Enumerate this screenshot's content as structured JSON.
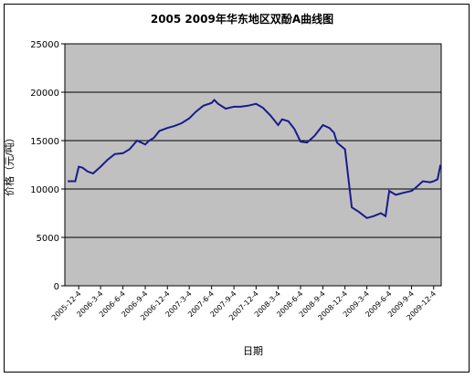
{
  "chart_data": {
    "type": "line",
    "title": "2005  2009年华东地区双酚A曲线图",
    "xlabel": "日期",
    "ylabel": "价格（元/吨）",
    "ylim": [
      0,
      25000
    ],
    "yticks": [
      0,
      5000,
      10000,
      15000,
      20000,
      25000
    ],
    "ytick_labels": [
      "0",
      "5000",
      "10000",
      "15000",
      "20000",
      "25000"
    ],
    "xtick_labels": [
      "2005-12-4",
      "2006-3-4",
      "2006-6-4",
      "2006-9-4",
      "2006-12-4",
      "2007-3-4",
      "2007-6-4",
      "2007-9-4",
      "2007-12-4",
      "2008-3-4",
      "2008-6-4",
      "2008-9-4",
      "2008-12-4",
      "2009-3-4",
      "2009-6-4",
      "2009-9-4",
      "2009-12-4"
    ],
    "grid": true,
    "plot_background": "#c0c0c0",
    "line_color": "#1a1a8c",
    "series": [
      {
        "x": [
          "2005-10-20",
          "2005-11-20",
          "2005-12-4",
          "2005-12-20",
          "2006-1-10",
          "2006-2-1",
          "2006-3-4",
          "2006-4-1",
          "2006-5-1",
          "2006-6-4",
          "2006-7-1",
          "2006-8-1",
          "2006-9-4",
          "2006-9-20",
          "2006-10-10",
          "2006-11-1",
          "2006-12-4",
          "2007-1-1",
          "2007-2-1",
          "2007-3-4",
          "2007-4-1",
          "2007-5-1",
          "2007-6-4",
          "2007-6-15",
          "2007-7-1",
          "2007-8-1",
          "2007-9-4",
          "2007-10-1",
          "2007-11-1",
          "2007-12-4",
          "2008-1-1",
          "2008-2-1",
          "2008-3-4",
          "2008-3-20",
          "2008-4-15",
          "2008-5-10",
          "2008-6-4",
          "2008-7-1",
          "2008-8-1",
          "2008-9-4",
          "2008-10-1",
          "2008-10-20",
          "2008-11-1",
          "2008-11-10",
          "2008-12-4",
          "2009-1-1",
          "2009-2-1",
          "2009-3-4",
          "2009-4-1",
          "2009-5-1",
          "2009-5-20",
          "2009-6-4",
          "2009-7-1",
          "2009-8-1",
          "2009-9-4",
          "2009-9-20",
          "2009-10-20",
          "2009-11-20",
          "2009-12-4",
          "2009-12-20",
          "2010-1-1"
        ],
        "values": [
          10800,
          10800,
          12300,
          12200,
          11800,
          11600,
          12300,
          13000,
          13600,
          13700,
          14100,
          15000,
          14600,
          15000,
          15300,
          16000,
          16300,
          16500,
          16800,
          17300,
          18000,
          18600,
          18900,
          19200,
          18800,
          18300,
          18500,
          18500,
          18600,
          18800,
          18400,
          17600,
          16600,
          17200,
          17000,
          16200,
          14900,
          14800,
          15500,
          16600,
          16300,
          15800,
          14800,
          14600,
          14100,
          8100,
          7600,
          7000,
          7200,
          7500,
          7200,
          9800,
          9400,
          9600,
          9800,
          10100,
          10800,
          10700,
          10800,
          11000,
          12500
        ]
      }
    ]
  }
}
